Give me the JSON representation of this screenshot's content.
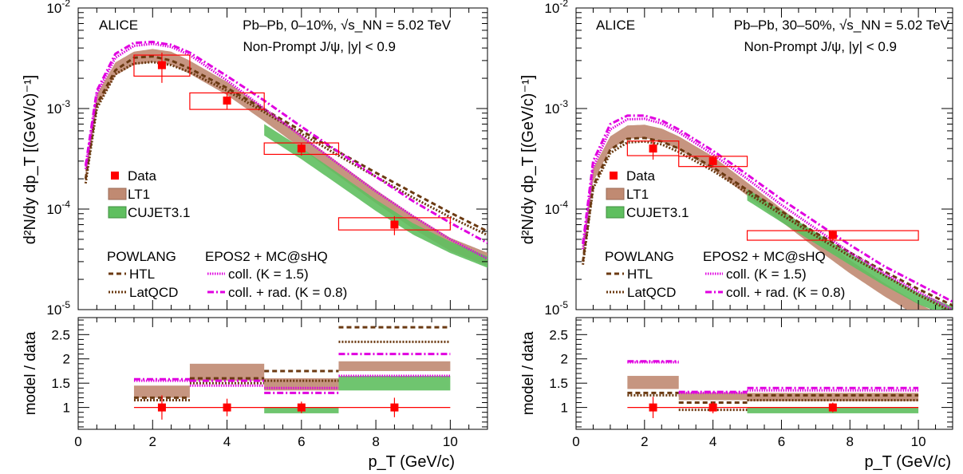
{
  "x_axis_label": "p_T (GeV/c)",
  "ratio_ylabel": "model / data",
  "main_ylabel": "d²N/dy dp_T [(GeV/c)⁻¹]",
  "legend": {
    "data": "Data",
    "lt1": "LT1",
    "cujet": "CUJET3.1",
    "powlang_title": "POWLANG",
    "htl": "HTL",
    "latqcd": "LatQCD",
    "epos_title": "EPOS2 + MC@sHQ",
    "coll": "coll. (K = 1.5)",
    "collrad": "coll. + rad. (K = 0.8)"
  },
  "colors": {
    "data": "#ff0000",
    "lt1": "#c08a72",
    "cujet": "#5fbf5f",
    "powlang": "#6b3a12",
    "epos": "#e000e0"
  },
  "chart_data": [
    {
      "type": "scatter",
      "collaboration": "ALICE",
      "system": "Pb–Pb, 0–10%, √s_NN = 5.02 TeV",
      "selection": "Non-Prompt J/ψ, |y| < 0.9",
      "xlim": [
        0,
        11
      ],
      "ylim": [
        1e-05,
        0.01
      ],
      "yscale": "log",
      "ratio_ylim": [
        0.55,
        2.85
      ],
      "data": [
        {
          "x": 2.25,
          "xlo": 1.5,
          "xhi": 3,
          "y": 0.0027,
          "stat": 0.0009,
          "syslo": 0.0021,
          "syshi": 0.0034
        },
        {
          "x": 4,
          "xlo": 3,
          "xhi": 5,
          "y": 0.0012,
          "stat": 0.00022,
          "syslo": 0.00098,
          "syshi": 0.00143
        },
        {
          "x": 6,
          "xlo": 5,
          "xhi": 7,
          "y": 0.0004,
          "stat": 6e-05,
          "syslo": 0.00035,
          "syshi": 0.000455
        },
        {
          "x": 8.5,
          "xlo": 7,
          "xhi": 10,
          "y": 7e-05,
          "stat": 1.5e-05,
          "syslo": 6.2e-05,
          "syshi": 8.2e-05
        }
      ],
      "models": {
        "lt1": {
          "x": [
            0.2,
            0.5,
            1,
            1.5,
            2,
            2.5,
            3,
            4,
            5,
            6,
            7,
            8,
            9,
            10,
            11
          ],
          "y": [
            0.00022,
            0.0012,
            0.0025,
            0.0032,
            0.0034,
            0.0032,
            0.0026,
            0.0016,
            0.00088,
            0.00047,
            0.00025,
            0.000135,
            7.5e-05,
            4.5e-05,
            3.2e-05
          ],
          "rel_width": 0.15
        },
        "cujet": {
          "xmin": 5,
          "x": [
            5,
            6,
            7,
            8,
            9,
            10,
            11
          ],
          "y": [
            0.00062,
            0.00036,
            0.0002,
            0.00011,
            6.4e-05,
            4.2e-05,
            3e-05
          ],
          "rel_width": 0.13
        },
        "htl": {
          "x": [
            0.2,
            0.5,
            1,
            1.5,
            2,
            2.5,
            3,
            4,
            5,
            6,
            7,
            8,
            9,
            10,
            11
          ],
          "y": [
            0.0002,
            0.0011,
            0.0024,
            0.0032,
            0.0033,
            0.003,
            0.0025,
            0.0016,
            0.00098,
            0.0006,
            0.00037,
            0.00023,
            0.000145,
            9.2e-05,
            6e-05
          ]
        },
        "latqcd": {
          "x": [
            0.2,
            0.5,
            1,
            1.5,
            2,
            2.5,
            3,
            4,
            5,
            6,
            7,
            8,
            9,
            10,
            11
          ],
          "y": [
            0.00018,
            0.001,
            0.0022,
            0.0028,
            0.0029,
            0.0027,
            0.0023,
            0.0015,
            0.00092,
            0.00056,
            0.00034,
            0.00021,
            0.00013,
            8.3e-05,
            5.5e-05
          ]
        },
        "coll": {
          "x": [
            0.2,
            0.5,
            1,
            1.5,
            2,
            2.5,
            3,
            4,
            5,
            6,
            7,
            8,
            9,
            10,
            11
          ],
          "y": [
            0.00025,
            0.0014,
            0.0032,
            0.0042,
            0.0044,
            0.0041,
            0.0034,
            0.0019,
            0.001,
            0.00053,
            0.00028,
            0.00015,
            8.5e-05,
            5e-05,
            3.2e-05
          ]
        },
        "collrad": {
          "x": [
            0.2,
            0.5,
            1,
            1.5,
            2,
            2.5,
            3,
            4,
            5,
            6,
            7,
            8,
            9,
            10,
            11
          ],
          "y": [
            0.00027,
            0.0015,
            0.0035,
            0.0045,
            0.0046,
            0.0043,
            0.0036,
            0.0021,
            0.0012,
            0.00066,
            0.00037,
            0.00021,
            0.00012,
            7.3e-05,
            4.6e-05
          ]
        }
      },
      "ratio": {
        "bins": [
          [
            1.5,
            3
          ],
          [
            3,
            5
          ],
          [
            5,
            7
          ],
          [
            7,
            10
          ]
        ],
        "data_x": [
          2.25,
          4,
          6,
          8.5
        ],
        "data_stat": [
          0.25,
          0.18,
          0.12,
          0.2
        ],
        "lt1": [
          [
            1.2,
            1.45
          ],
          [
            1.55,
            1.9
          ],
          [
            1.35,
            1.6
          ],
          [
            1.75,
            1.95
          ]
        ],
        "cujet": [
          null,
          null,
          [
            0.88,
            1.0
          ],
          [
            1.35,
            1.65
          ]
        ],
        "htl": [
          1.2,
          1.6,
          1.75,
          2.65
        ],
        "latqcd": [
          1.15,
          1.5,
          1.55,
          2.35
        ],
        "coll": [
          1.55,
          1.45,
          1.4,
          1.65
        ],
        "collrad": [
          1.58,
          1.55,
          1.3,
          2.1
        ]
      }
    },
    {
      "type": "scatter",
      "collaboration": "ALICE",
      "system": "Pb–Pb, 30–50%, √s_NN = 5.02 TeV",
      "selection": "Non-Prompt J/ψ, |y| < 0.9",
      "xlim": [
        0,
        11
      ],
      "ylim": [
        1e-05,
        0.01
      ],
      "yscale": "log",
      "ratio_ylim": [
        0.55,
        2.85
      ],
      "data": [
        {
          "x": 2.25,
          "xlo": 1.5,
          "xhi": 3,
          "y": 0.0004,
          "stat": 9e-05,
          "syslo": 0.00034,
          "syshi": 0.000475
        },
        {
          "x": 4,
          "xlo": 3,
          "xhi": 5,
          "y": 0.0003,
          "stat": 4e-05,
          "syslo": 0.000265,
          "syshi": 0.000335
        },
        {
          "x": 7.5,
          "xlo": 5,
          "xhi": 10,
          "y": 5.5e-05,
          "stat": 6e-06,
          "syslo": 4.9e-05,
          "syshi": 6.1e-05
        }
      ],
      "models": {
        "lt1": {
          "x": [
            0.2,
            0.5,
            1,
            1.5,
            2,
            2.5,
            3,
            4,
            5,
            6,
            7,
            8,
            9,
            10,
            11
          ],
          "y": [
            4e-05,
            0.00022,
            0.00046,
            0.00059,
            0.0006,
            0.00055,
            0.00046,
            0.00029,
            0.00016,
            8.8e-05,
            4.8e-05,
            2.7e-05,
            1.6e-05,
            1e-05,
            6.7e-06
          ],
          "rel_width": 0.15
        },
        "cujet": {
          "xmin": 5,
          "x": [
            5,
            6,
            7,
            8,
            9,
            10,
            11
          ],
          "y": [
            0.00014,
            8.5e-05,
            5.2e-05,
            3.2e-05,
            2e-05,
            1.3e-05,
            9.5e-06
          ],
          "rel_width": 0.13
        },
        "htl": {
          "x": [
            0.2,
            0.5,
            1,
            1.5,
            2,
            2.5,
            3,
            4,
            5,
            6,
            7,
            8,
            9,
            10,
            11
          ],
          "y": [
            3e-05,
            0.00017,
            0.00039,
            0.0005,
            0.00051,
            0.00047,
            0.0004,
            0.00026,
            0.000155,
            9.5e-05,
            5.8e-05,
            3.7e-05,
            2.4e-05,
            1.6e-05,
            1.1e-05
          ]
        },
        "latqcd": {
          "x": [
            0.2,
            0.5,
            1,
            1.5,
            2,
            2.5,
            3,
            4,
            5,
            6,
            7,
            8,
            9,
            10,
            11
          ],
          "y": [
            2.8e-05,
            0.00016,
            0.00036,
            0.00046,
            0.00047,
            0.00044,
            0.00037,
            0.00024,
            0.000145,
            8.8e-05,
            5.4e-05,
            3.4e-05,
            2.2e-05,
            1.4e-05,
            9.5e-06
          ]
        },
        "coll": {
          "x": [
            0.2,
            0.5,
            1,
            1.5,
            2,
            2.5,
            3,
            4,
            5,
            6,
            7,
            8,
            9,
            10,
            11
          ],
          "y": [
            4e-05,
            0.00026,
            0.00062,
            0.00078,
            0.00079,
            0.00071,
            0.00058,
            0.00035,
            0.0002,
            0.00011,
            6.4e-05,
            3.7e-05,
            2.3e-05,
            1.5e-05,
            1e-05
          ]
        },
        "collrad": {
          "x": [
            0.2,
            0.5,
            1,
            1.5,
            2,
            2.5,
            3,
            4,
            5,
            6,
            7,
            8,
            9,
            10,
            11
          ],
          "y": [
            4.5e-05,
            0.0003,
            0.0007,
            0.00085,
            0.00085,
            0.00076,
            0.00062,
            0.00038,
            0.00022,
            0.000125,
            7.4e-05,
            4.4e-05,
            2.7e-05,
            1.8e-05,
            1.2e-05
          ]
        }
      },
      "ratio": {
        "bins": [
          [
            1.5,
            3
          ],
          [
            3,
            5
          ],
          [
            5,
            10
          ]
        ],
        "data_x": [
          2.25,
          4,
          7.5
        ],
        "data_stat": [
          0.22,
          0.12,
          0.1
        ],
        "lt1": [
          [
            1.38,
            1.65
          ],
          [
            1.15,
            1.3
          ],
          [
            1.13,
            1.3
          ]
        ],
        "cujet": [
          null,
          null,
          [
            0.88,
            1.0
          ]
        ],
        "htl": [
          1.3,
          1.1,
          1.25
        ],
        "latqcd": [
          1.25,
          0.95,
          1.15
        ],
        "coll": [
          1.93,
          1.3,
          1.35
        ],
        "collrad": [
          1.95,
          1.32,
          1.4
        ]
      }
    }
  ]
}
